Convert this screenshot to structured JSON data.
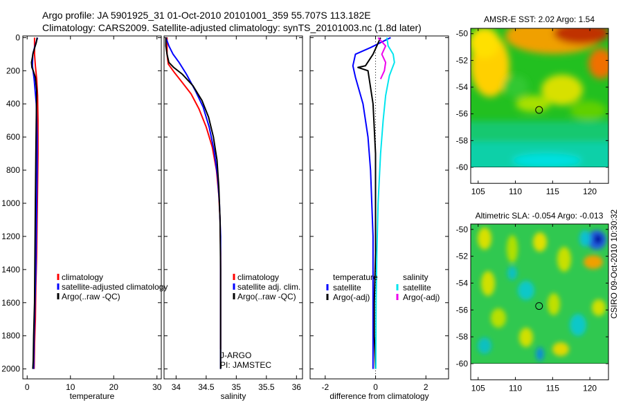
{
  "header": {
    "title_line1": "Argo profile: JA 5901925_31 01-Oct-2010 20101001_359 55.707S 113.182E",
    "title_line2": "Climatology: CARS2009. Satellite-adjusted climatology: synTS_20101003.nc (1.8d later)"
  },
  "footer": {
    "stamp": "CSIRO 09-Oct-2010 10:30:32"
  },
  "colors": {
    "climatology": "#ff0000",
    "satellite": "#0000ff",
    "argo": "#000000",
    "salinity_satellite": "#00e5ee",
    "salinity_argo": "#ee00ee"
  },
  "chart_data": [
    {
      "type": "line",
      "id": "temperature",
      "xlabel": "temperature",
      "ylabel": "",
      "xlim": [
        -1,
        31
      ],
      "ylim": [
        2060,
        -10
      ],
      "x_ticks": [
        0,
        10,
        20,
        30
      ],
      "y_ticks": [
        0,
        200,
        400,
        600,
        800,
        1000,
        1200,
        1400,
        1600,
        1800,
        2000
      ],
      "legend": [
        "climatology",
        "satellite-adjusted climatology",
        "Argo(..raw -QC)"
      ],
      "series": [
        {
          "name": "climatology",
          "color": "#ff0000",
          "x": [
            1.7,
            1.7,
            1.9,
            2.2,
            2.4,
            2.5,
            2.5,
            2.4,
            2.3,
            2.2,
            2.0,
            1.9,
            1.7,
            1.6
          ],
          "y": [
            0,
            100,
            170,
            250,
            350,
            500,
            700,
            900,
            1100,
            1300,
            1500,
            1700,
            1850,
            2000
          ]
        },
        {
          "name": "satellite-adjusted climatology",
          "color": "#0000ff",
          "x": [
            2.4,
            1.8,
            1.3,
            1.2,
            1.6,
            2.1,
            2.3,
            2.3,
            2.2,
            2.1,
            2.0,
            1.8,
            1.6,
            1.5
          ],
          "y": [
            0,
            50,
            100,
            170,
            250,
            400,
            600,
            800,
            1000,
            1200,
            1400,
            1600,
            1800,
            2000
          ]
        },
        {
          "name": "Argo(..raw -QC)",
          "color": "#000000",
          "x": [
            2.3,
            2.1,
            1.4,
            1.0,
            1.1,
            1.4,
            1.9,
            2.2,
            2.1,
            2.0,
            1.9,
            1.8,
            1.7,
            1.5,
            1.4,
            1.3
          ],
          "y": [
            0,
            30,
            90,
            150,
            180,
            200,
            240,
            320,
            500,
            700,
            1000,
            1300,
            1600,
            1800,
            1950,
            2000
          ]
        }
      ]
    },
    {
      "type": "line",
      "id": "salinity",
      "xlabel": "salinity",
      "xlim": [
        33.8,
        36.1
      ],
      "ylim": [
        2060,
        -10
      ],
      "x_ticks": [
        34,
        34.5,
        35,
        35.5,
        36
      ],
      "x_tick_labels": [
        "34",
        "34.5",
        "35",
        "35.5",
        "36"
      ],
      "legend": [
        "climatology",
        "satellite adj. clim.",
        "Argo(..raw -QC)"
      ],
      "annotations": [
        "J-ARGO",
        "PI: JAMSTEC"
      ],
      "series": [
        {
          "name": "climatology",
          "color": "#ff0000",
          "x": [
            33.85,
            33.85,
            33.87,
            33.97,
            34.08,
            34.25,
            34.38,
            34.5,
            34.6,
            34.67,
            34.71,
            34.73,
            34.74,
            34.74,
            34.74
          ],
          "y": [
            0,
            100,
            160,
            210,
            260,
            340,
            430,
            540,
            660,
            800,
            950,
            1100,
            1300,
            1600,
            1880
          ]
        },
        {
          "name": "satellite adj. clim.",
          "color": "#0000ff",
          "x": [
            33.83,
            33.88,
            33.95,
            34.05,
            34.17,
            34.32,
            34.45,
            34.55,
            34.63,
            34.69,
            34.72,
            34.74,
            34.74,
            34.74
          ],
          "y": [
            0,
            50,
            100,
            150,
            220,
            320,
            420,
            540,
            680,
            840,
            1000,
            1200,
            1600,
            2000
          ]
        },
        {
          "name": "Argo(..raw -QC)",
          "color": "#000000",
          "x": [
            33.83,
            33.83,
            33.85,
            33.88,
            33.96,
            34.1,
            34.28,
            34.43,
            34.54,
            34.62,
            34.68,
            34.71,
            34.73,
            34.74,
            34.74,
            34.74
          ],
          "y": [
            0,
            50,
            100,
            150,
            180,
            220,
            290,
            380,
            480,
            600,
            740,
            900,
            1100,
            1400,
            1700,
            2000
          ]
        }
      ]
    },
    {
      "type": "line",
      "id": "difference",
      "xlabel": "difference from climatology",
      "xlim": [
        -2.6,
        2.9
      ],
      "ylim": [
        2060,
        -10
      ],
      "x_ticks": [
        -2,
        0,
        2
      ],
      "legend_temperature": {
        "title": "temperature",
        "items": [
          "satellite",
          "Argo(-adj)"
        ]
      },
      "legend_salinity": {
        "title": "salinity",
        "items": [
          "satellite",
          "Argo(-adj)"
        ]
      },
      "series": [
        {
          "name": "temperature satellite",
          "color": "#0000ff",
          "x": [
            0.6,
            -0.2,
            -0.8,
            -0.9,
            -0.8,
            -0.5,
            -0.3,
            -0.2,
            -0.15,
            -0.1,
            -0.1,
            -0.1,
            -0.1
          ],
          "y": [
            0,
            60,
            100,
            170,
            240,
            400,
            600,
            800,
            1000,
            1200,
            1500,
            1800,
            2000
          ]
        },
        {
          "name": "temperature Argo(-adj)",
          "color": "#000000",
          "x": [
            0.2,
            -0.1,
            -0.4,
            -0.7,
            -0.3,
            -0.1,
            0.0,
            0.0,
            0.0,
            -0.05,
            -0.05,
            0.0
          ],
          "y": [
            0,
            100,
            170,
            180,
            200,
            400,
            700,
            1000,
            1300,
            1600,
            1800,
            2000
          ]
        },
        {
          "name": "salinity satellite",
          "color": "#00e5ee",
          "x": [
            0.45,
            0.5,
            0.7,
            0.75,
            0.55,
            0.4,
            0.3,
            0.2,
            0.1,
            0.05,
            0.02,
            0.01
          ],
          "y": [
            0,
            50,
            100,
            150,
            230,
            350,
            500,
            700,
            1000,
            1300,
            1600,
            2000
          ]
        },
        {
          "name": "salinity Argo(-adj)",
          "color": "#ee00ee",
          "x": [
            0.1,
            0.4,
            0.25,
            0.4,
            0.35,
            0.2
          ],
          "y": [
            0,
            50,
            100,
            150,
            200,
            250
          ]
        }
      ]
    },
    {
      "type": "heatmap",
      "id": "sst",
      "title": "AMSR-E SST: 2.02 Argo: 1.54",
      "xlim": [
        104,
        122.5
      ],
      "ylim": [
        -61.2,
        -49.6
      ],
      "x_ticks": [
        105,
        110,
        115,
        120
      ],
      "y_ticks": [
        -50,
        -52,
        -54,
        -56,
        -58,
        -60
      ],
      "data_extent": {
        "lat_min": -60,
        "lat_max": -49.6
      },
      "marker": {
        "lon": 113.182,
        "lat": -55.707
      }
    },
    {
      "type": "heatmap",
      "id": "sla",
      "title": "Altimetric SLA: -0.054 Argo: -0.013",
      "xlim": [
        104,
        122.5
      ],
      "ylim": [
        -61.2,
        -49.6
      ],
      "x_ticks": [
        105,
        110,
        115,
        120
      ],
      "y_ticks": [
        -50,
        -52,
        -54,
        -56,
        -58,
        -60
      ],
      "data_extent": {
        "lat_min": -60,
        "lat_max": -49.6
      },
      "marker": {
        "lon": 113.182,
        "lat": -55.707
      }
    }
  ]
}
